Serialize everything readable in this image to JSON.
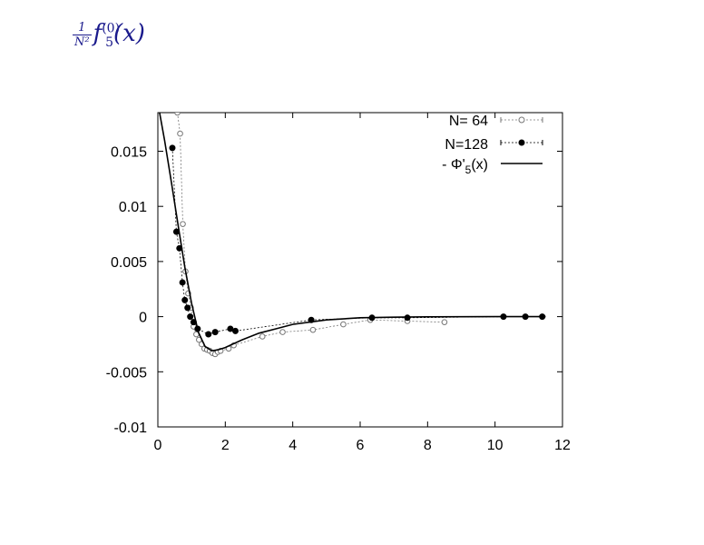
{
  "title_math": {
    "frac_num": "1",
    "frac_den": "N²",
    "func": "f",
    "sup": "(0)",
    "sub": "5",
    "arg": "(x)"
  },
  "chart_data": {
    "type": "line",
    "xlim": [
      0,
      12
    ],
    "ylim": [
      -0.01,
      0.0185
    ],
    "xticks": [
      0,
      2,
      4,
      6,
      8,
      10,
      12
    ],
    "xtick_labels": [
      "0",
      "2",
      "4",
      "6",
      "8",
      "10",
      "12"
    ],
    "yticks": [
      -0.01,
      -0.005,
      0,
      0.005,
      0.01,
      0.015
    ],
    "ytick_labels": [
      "-0.01",
      "-0.005",
      "0",
      "0.005",
      "0.01",
      "0.015"
    ],
    "grid": false,
    "legend_position": "top-right",
    "series": [
      {
        "name": "N= 64",
        "marker": "open-circle",
        "style": "dotted",
        "color": "#777777",
        "x": [
          0.58,
          0.66,
          0.74,
          0.82,
          0.9,
          0.98,
          1.06,
          1.14,
          1.22,
          1.3,
          1.38,
          1.46,
          1.54,
          1.62,
          1.7,
          1.78,
          1.86,
          2.1,
          2.25,
          3.1,
          3.7,
          4.6,
          5.5,
          6.3,
          7.4,
          8.5
        ],
        "y": [
          0.0185,
          0.0166,
          0.0084,
          0.0041,
          0.0021,
          0.0008,
          -0.0009,
          -0.0016,
          -0.0021,
          -0.0025,
          -0.0029,
          -0.003,
          -0.0031,
          -0.0033,
          -0.0034,
          -0.0032,
          -0.0031,
          -0.0029,
          -0.0026,
          -0.0018,
          -0.0014,
          -0.0012,
          -0.0007,
          -0.0003,
          -0.0004,
          -0.0005
        ]
      },
      {
        "name": "N=128",
        "marker": "filled-circle",
        "style": "dotted",
        "color": "#000000",
        "x": [
          0.43,
          0.55,
          0.64,
          0.73,
          0.8,
          0.88,
          0.96,
          1.06,
          1.18,
          1.5,
          1.7,
          2.15,
          2.3,
          4.55,
          6.35,
          7.4,
          10.25,
          10.9,
          11.4
        ],
        "y": [
          0.0153,
          0.0077,
          0.0062,
          0.0031,
          0.0015,
          0.0008,
          0.0,
          -0.0005,
          -0.0011,
          -0.0016,
          -0.0014,
          -0.0011,
          -0.0013,
          -0.0003,
          -0.0001,
          -0.0001,
          0.0,
          0.0,
          0.0
        ]
      },
      {
        "name": "- Φ'5(x)",
        "marker": "none",
        "style": "solid",
        "color": "#000000",
        "x": [
          0.05,
          0.2,
          0.4,
          0.6,
          0.8,
          1.0,
          1.2,
          1.4,
          1.6,
          1.8,
          2.0,
          2.5,
          3.0,
          3.5,
          4.0,
          5.0,
          6.0,
          7.0,
          8.0,
          9.0,
          10.0,
          11.0,
          11.5
        ],
        "y": [
          0.0185,
          0.016,
          0.0122,
          0.0083,
          0.0045,
          0.0012,
          -0.0014,
          -0.0027,
          -0.0031,
          -0.003,
          -0.0028,
          -0.0021,
          -0.0015,
          -0.0011,
          -0.0007,
          -0.0003,
          -0.0001,
          -5e-05,
          -2e-05,
          -1e-05,
          0.0,
          0.0,
          0.0
        ]
      }
    ],
    "legend": [
      {
        "label": "N= 64"
      },
      {
        "label": "N=128"
      },
      {
        "label_prefix": "- Φ'",
        "label_sub": "5",
        "label_suffix": "(x)"
      }
    ]
  }
}
